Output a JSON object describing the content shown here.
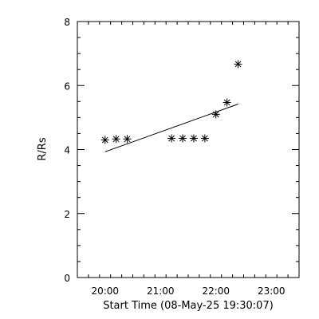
{
  "chart_data": {
    "type": "scatter",
    "title": "",
    "xlabel": "Start Time (08-May-25 19:30:07)",
    "ylabel": "R/Rs",
    "xlim": [
      "19:30",
      "23:30"
    ],
    "ylim": [
      0,
      8
    ],
    "x_ticks": [
      "20:00",
      "21:00",
      "22:00",
      "23:00"
    ],
    "y_ticks": [
      "0",
      "2",
      "4",
      "6",
      "8"
    ],
    "grid": false,
    "series": [
      {
        "marker": "asterisk",
        "points": [
          {
            "x": "20:00",
            "y": 4.3
          },
          {
            "x": "20:12",
            "y": 4.33
          },
          {
            "x": "20:24",
            "y": 4.33
          },
          {
            "x": "21:12",
            "y": 4.35
          },
          {
            "x": "21:24",
            "y": 4.35
          },
          {
            "x": "21:36",
            "y": 4.35
          },
          {
            "x": "21:48",
            "y": 4.35
          },
          {
            "x": "22:00",
            "y": 5.1
          },
          {
            "x": "22:12",
            "y": 5.47
          },
          {
            "x": "22:24",
            "y": 6.67
          }
        ]
      }
    ],
    "fit_line": {
      "start": {
        "x": "20:00",
        "y": 3.93
      },
      "end": {
        "x": "22:24",
        "y": 5.42
      }
    },
    "colors": {
      "axis": "#000000",
      "marker": "#000000",
      "line": "#000000"
    }
  }
}
